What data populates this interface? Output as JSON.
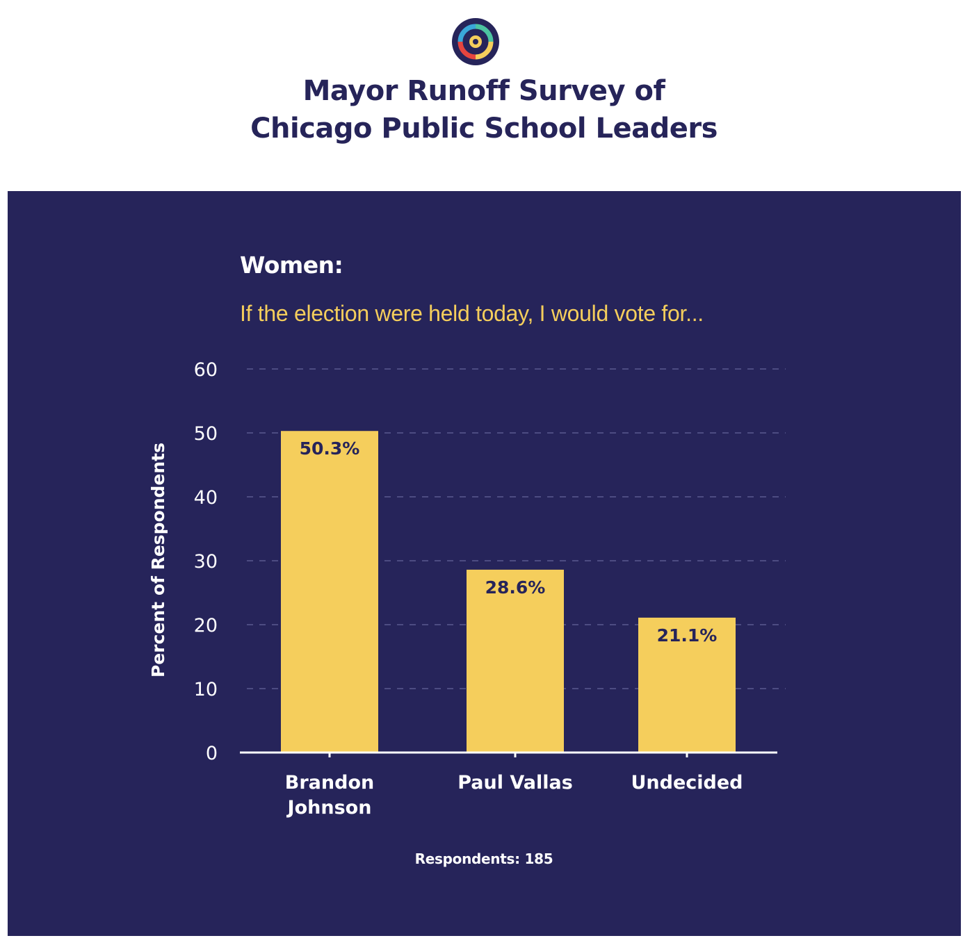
{
  "header": {
    "logo_name": "compass-logo",
    "title_line1": "Mayor Runoff Survey of",
    "title_line2": "Chicago Public School Leaders"
  },
  "colors": {
    "background": "#ffffff",
    "panel": "#26245a",
    "title": "#262459",
    "bar": "#f5ce5c",
    "question": "#f5ce5c",
    "gridline": "#5a5990",
    "axis": "#ffffff"
  },
  "panel": {
    "subtitle": "Women:",
    "question": "If the election were held today, I would vote for...",
    "respondents": "Respondents: 185"
  },
  "chart_data": {
    "type": "bar",
    "categories": [
      [
        "Brandon",
        "Johnson"
      ],
      [
        "Paul Vallas"
      ],
      [
        "Undecided"
      ]
    ],
    "values": [
      50.3,
      28.6,
      21.1
    ],
    "data_labels": [
      "50.3%",
      "28.6%",
      "21.1%"
    ],
    "ylabel": "Percent of Respondents",
    "ylim": [
      0,
      60
    ],
    "yticks": [
      0,
      10,
      20,
      30,
      40,
      50,
      60
    ],
    "grid": "horizontal-dashed",
    "legend": "none"
  }
}
